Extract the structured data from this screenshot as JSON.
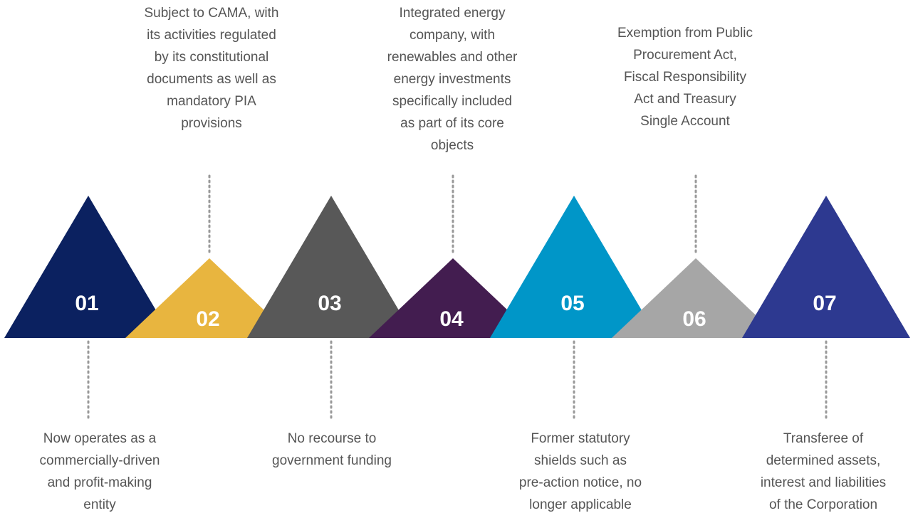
{
  "items": [
    {
      "number": "01",
      "lines": [
        "Now operates as a",
        "commercially-driven",
        "and profit-making",
        "entity"
      ]
    },
    {
      "number": "02",
      "lines": [
        "Subject to CAMA, with",
        "its activities regulated",
        "by its constitutional",
        "documents as well as",
        "mandatory PIA",
        "provisions"
      ]
    },
    {
      "number": "03",
      "lines": [
        "No recourse to",
        "government funding"
      ]
    },
    {
      "number": "04",
      "lines": [
        "Integrated energy",
        "company, with",
        "renewables and other",
        "energy investments",
        "specifically included",
        "as part of its core",
        "objects"
      ]
    },
    {
      "number": "05",
      "lines": [
        "Former statutory",
        "shields such as",
        "pre-action notice, no",
        "longer applicable"
      ]
    },
    {
      "number": "06",
      "lines": [
        "Exemption from Public",
        "Procurement Act,",
        "Fiscal Responsibility",
        "Act and Treasury",
        "Single Account"
      ]
    },
    {
      "number": "07",
      "lines": [
        "Transferee of",
        "determined assets,",
        "interest and liabilities",
        "of the Corporation"
      ]
    }
  ]
}
